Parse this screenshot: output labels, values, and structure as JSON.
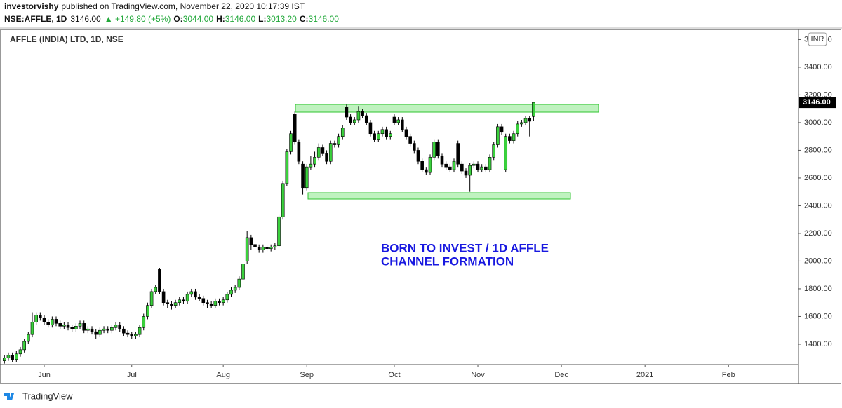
{
  "header": {
    "user": "investorvishy",
    "published": "published on TradingView.com, November 22, 2020 10:17:39 IST",
    "symbol": "NSE:AFFLE, 1D",
    "price": "3146.00",
    "change": "▲ +149.80 (+5%)",
    "ohlc": [
      {
        "label": "O:",
        "value": "3044.00"
      },
      {
        "label": "H:",
        "value": "3146.00"
      },
      {
        "label": "L:",
        "value": "3013.20"
      },
      {
        "label": "C:",
        "value": "3146.00"
      }
    ]
  },
  "chart_data": {
    "type": "candlestick",
    "title": "AFFLE (INDIA) LTD, 1D, NSE",
    "annotations": [
      "BORN TO INVEST / 1D AFFLE",
      "CHANNEL FORMATION"
    ],
    "currency": "INR",
    "last_price_label": "3146.00",
    "up_color": "#3ad13c",
    "down_color": "#000000",
    "categories": [
      null,
      null,
      null,
      null,
      null,
      null,
      null,
      null,
      null,
      null,
      "Jun",
      null,
      null,
      null,
      null,
      null,
      null,
      null,
      null,
      null,
      null,
      null,
      null,
      null,
      null,
      null,
      null,
      null,
      null,
      null,
      null,
      null,
      "Jul",
      null,
      null,
      null,
      null,
      null,
      null,
      null,
      null,
      null,
      null,
      null,
      null,
      null,
      null,
      null,
      null,
      null,
      null,
      null,
      null,
      null,
      null,
      "Aug",
      null,
      null,
      null,
      null,
      null,
      null,
      null,
      null,
      null,
      null,
      null,
      null,
      null,
      null,
      null,
      null,
      null,
      null,
      null,
      null,
      "Sep",
      null,
      null,
      null,
      null,
      null,
      null,
      null,
      null,
      null,
      null,
      null,
      null,
      null,
      null,
      null,
      null,
      null,
      null,
      null,
      null,
      null,
      "Oct",
      null,
      null,
      null,
      null,
      null,
      null,
      null,
      null,
      null,
      null,
      null,
      null,
      null,
      null,
      null,
      null,
      null,
      null,
      null,
      null,
      "Nov",
      null,
      null,
      null,
      null,
      null,
      null,
      null,
      null,
      null,
      null,
      null,
      null,
      null,
      null,
      null,
      null,
      null,
      null,
      null,
      null,
      "Dec",
      null,
      null,
      null,
      null,
      null,
      null,
      null,
      null,
      null,
      null,
      null,
      null,
      null,
      null,
      null,
      null,
      null,
      null,
      null,
      null,
      "2021",
      null,
      null,
      null,
      null,
      null,
      null,
      null,
      null,
      null,
      null,
      null,
      null,
      null,
      null,
      null,
      null,
      null,
      null,
      null,
      null,
      "Feb",
      null,
      null,
      null,
      null,
      null,
      null,
      null,
      null,
      null,
      null,
      null,
      null,
      null,
      null,
      null,
      null,
      null
    ],
    "open": [
      1280,
      1300,
      1320,
      1290,
      1330,
      1360,
      1420,
      1470,
      1560,
      1610,
      1590,
      1560,
      1540,
      1580,
      1550,
      1530,
      1540,
      1520,
      1510,
      1530,
      1550,
      1500,
      1510,
      1490,
      1470,
      1500,
      1510,
      1500,
      1520,
      1540,
      1510,
      1480,
      1470,
      1460,
      1470,
      1520,
      1600,
      1680,
      1780,
      1940,
      1780,
      1700,
      1690,
      1680,
      1700,
      1720,
      1710,
      1760,
      1780,
      1740,
      1730,
      1700,
      1690,
      1680,
      1710,
      1700,
      1720,
      1760,
      1790,
      1810,
      1870,
      2000,
      2170,
      2120,
      2100,
      2080,
      2100,
      2090,
      2100,
      2110,
      2320,
      2560,
      2790,
      3060,
      2860,
      2700,
      2530,
      2680,
      2700,
      2750,
      2820,
      2780,
      2720,
      2850,
      2840,
      2900,
      3110,
      3040,
      3000,
      3020,
      3080,
      3050,
      3000,
      2920,
      2880,
      2920,
      2950,
      2900,
      3040,
      3000,
      3020,
      2950,
      2900,
      2850,
      2800,
      2720,
      2660,
      2640,
      2750,
      2860,
      2760,
      2700,
      2680,
      2660,
      2850,
      2700,
      2650,
      2620,
      2690,
      2700,
      2660,
      2680,
      2660,
      2750,
      2840,
      2970,
      2660,
      2900,
      2870,
      2920,
      2990,
      3000,
      3030,
      3044,
      null,
      null,
      null,
      null,
      null,
      null,
      null,
      null,
      null,
      null,
      null,
      null,
      null,
      null,
      null,
      null,
      null,
      null,
      null,
      null,
      null,
      null,
      null,
      null,
      null,
      null,
      null,
      null,
      null,
      null,
      null,
      null,
      null,
      null,
      null,
      null,
      null,
      null,
      null,
      null,
      null,
      null,
      null,
      null,
      null,
      null,
      null,
      null,
      null,
      null,
      null,
      null,
      null,
      null,
      null,
      null,
      null,
      null,
      null,
      null,
      null,
      null,
      null,
      null,
      null,
      null
    ],
    "high": [
      1320,
      1340,
      1340,
      1350,
      1380,
      1440,
      1490,
      1630,
      1630,
      1630,
      1610,
      1580,
      1600,
      1600,
      1570,
      1560,
      1560,
      1540,
      1550,
      1570,
      1570,
      1530,
      1530,
      1510,
      1520,
      1530,
      1530,
      1540,
      1560,
      1560,
      1530,
      1500,
      1490,
      1490,
      1540,
      1620,
      1700,
      1800,
      1830,
      1950,
      1800,
      1720,
      1710,
      1720,
      1740,
      1740,
      1780,
      1800,
      1800,
      1760,
      1750,
      1720,
      1710,
      1730,
      1730,
      1740,
      1780,
      1810,
      1830,
      1890,
      2000,
      2220,
      2190,
      2140,
      2120,
      2120,
      2120,
      2120,
      2130,
      2340,
      2580,
      2810,
      2940,
      3080,
      2880,
      2720,
      2700,
      2760,
      2790,
      2850,
      2840,
      2800,
      2870,
      2870,
      2920,
      2980,
      3130,
      3060,
      3040,
      3120,
      3100,
      3070,
      3020,
      2940,
      2940,
      2970,
      2970,
      2940,
      3060,
      3040,
      3040,
      2970,
      2920,
      2870,
      2820,
      2740,
      2680,
      2770,
      2880,
      2880,
      2780,
      2720,
      2700,
      2740,
      2870,
      2720,
      2670,
      2710,
      2720,
      2720,
      2700,
      2700,
      2770,
      2860,
      2990,
      2990,
      2920,
      2920,
      2940,
      3010,
      3020,
      3050,
      3050,
      3146,
      null,
      null,
      null,
      null,
      null,
      null,
      null,
      null,
      null,
      null,
      null,
      null,
      null,
      null,
      null,
      null,
      null,
      null,
      null,
      null,
      null,
      null,
      null,
      null,
      null,
      null,
      null,
      null,
      null,
      null,
      null,
      null,
      null,
      null,
      null,
      null,
      null,
      null,
      null,
      null,
      null,
      null,
      null,
      null,
      null,
      null,
      null,
      null,
      null,
      null,
      null,
      null,
      null,
      null,
      null,
      null,
      null,
      null,
      null,
      null,
      null,
      null,
      null,
      null,
      null,
      null
    ],
    "low": [
      1260,
      1280,
      1270,
      1270,
      1310,
      1340,
      1400,
      1450,
      1540,
      1570,
      1540,
      1520,
      1520,
      1530,
      1510,
      1510,
      1500,
      1490,
      1490,
      1510,
      1480,
      1480,
      1470,
      1440,
      1450,
      1480,
      1480,
      1480,
      1500,
      1490,
      1460,
      1450,
      1440,
      1440,
      1450,
      1500,
      1580,
      1660,
      1760,
      1760,
      1680,
      1660,
      1650,
      1660,
      1680,
      1690,
      1690,
      1740,
      1720,
      1710,
      1680,
      1660,
      1660,
      1660,
      1680,
      1680,
      1700,
      1740,
      1770,
      1790,
      1850,
      1980,
      2080,
      2060,
      2060,
      2060,
      2070,
      2070,
      2080,
      2100,
      2300,
      2540,
      2770,
      2840,
      2700,
      2480,
      2510,
      2660,
      2680,
      2730,
      2760,
      2700,
      2700,
      2820,
      2820,
      2880,
      3020,
      2980,
      2980,
      3000,
      3030,
      2980,
      2900,
      2860,
      2860,
      2900,
      2880,
      2880,
      2980,
      2980,
      2930,
      2880,
      2830,
      2780,
      2700,
      2640,
      2620,
      2620,
      2730,
      2740,
      2680,
      2660,
      2640,
      2640,
      2680,
      2630,
      2600,
      2500,
      2670,
      2640,
      2640,
      2640,
      2640,
      2730,
      2820,
      2910,
      2640,
      2850,
      2850,
      2900,
      2970,
      2980,
      2900,
      3013.2,
      null,
      null,
      null,
      null,
      null,
      null,
      null,
      null,
      null,
      null,
      null,
      null,
      null,
      null,
      null,
      null,
      null,
      null,
      null,
      null,
      null,
      null,
      null,
      null,
      null,
      null,
      null,
      null,
      null,
      null,
      null,
      null,
      null,
      null,
      null,
      null,
      null,
      null,
      null,
      null,
      null,
      null,
      null,
      null,
      null,
      null,
      null,
      null,
      null,
      null,
      null,
      null,
      null,
      null,
      null,
      null,
      null,
      null,
      null,
      null,
      null,
      null,
      null,
      null,
      null,
      null
    ],
    "close": [
      1300,
      1320,
      1290,
      1330,
      1360,
      1420,
      1470,
      1560,
      1610,
      1590,
      1560,
      1540,
      1580,
      1550,
      1530,
      1540,
      1520,
      1510,
      1530,
      1550,
      1500,
      1510,
      1490,
      1470,
      1500,
      1510,
      1500,
      1520,
      1540,
      1510,
      1480,
      1470,
      1460,
      1470,
      1520,
      1600,
      1680,
      1780,
      1810,
      1780,
      1700,
      1690,
      1680,
      1700,
      1720,
      1710,
      1760,
      1780,
      1740,
      1730,
      1700,
      1690,
      1680,
      1710,
      1700,
      1720,
      1760,
      1790,
      1810,
      1870,
      1980,
      2170,
      2120,
      2100,
      2080,
      2100,
      2090,
      2100,
      2110,
      2320,
      2560,
      2790,
      2920,
      2860,
      2720,
      2530,
      2680,
      2700,
      2750,
      2820,
      2780,
      2720,
      2850,
      2840,
      2900,
      2960,
      3040,
      3000,
      3020,
      3080,
      3050,
      3000,
      2920,
      2880,
      2920,
      2950,
      2900,
      2920,
      3000,
      3020,
      2950,
      2900,
      2850,
      2800,
      2720,
      2660,
      2640,
      2750,
      2860,
      2760,
      2700,
      2680,
      2660,
      2720,
      2700,
      2650,
      2620,
      2690,
      2700,
      2660,
      2680,
      2660,
      2750,
      2840,
      2970,
      2930,
      2900,
      2870,
      2920,
      2990,
      3000,
      3030,
      3010,
      3146,
      null,
      null,
      null,
      null,
      null,
      null,
      null,
      null,
      null,
      null,
      null,
      null,
      null,
      null,
      null,
      null,
      null,
      null,
      null,
      null,
      null,
      null,
      null,
      null,
      null,
      null,
      null,
      null,
      null,
      null,
      null,
      null,
      null,
      null,
      null,
      null,
      null,
      null,
      null,
      null,
      null,
      null,
      null,
      null,
      null,
      null,
      null,
      null,
      null,
      null,
      null,
      null,
      null,
      null,
      null,
      null,
      null,
      null,
      null,
      null,
      null,
      null,
      null,
      null,
      null,
      null
    ],
    "ylim": [
      1253,
      3673
    ],
    "yticks": [
      {
        "value": 1400,
        "label": "1400.00"
      },
      {
        "value": 1600,
        "label": "1600.00"
      },
      {
        "value": 1800,
        "label": "1800.00"
      },
      {
        "value": 2000,
        "label": "2000.00"
      },
      {
        "value": 2200,
        "label": "2200.00"
      },
      {
        "value": 2400,
        "label": "2400.00"
      },
      {
        "value": 2600,
        "label": "2600.00"
      },
      {
        "value": 2800,
        "label": "2800.00"
      },
      {
        "value": 3000,
        "label": "3000.00"
      },
      {
        "value": 3200,
        "label": "3200.00"
      },
      {
        "value": 3400,
        "label": "3400.00"
      },
      {
        "value": 3600,
        "label": "3600.00"
      }
    ],
    "grid": false
  },
  "footer": {
    "brand": "TradingView"
  }
}
